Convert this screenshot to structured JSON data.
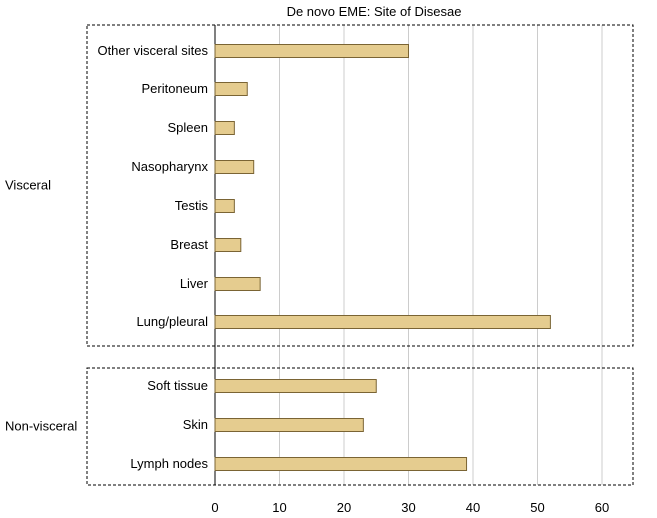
{
  "chart_data": {
    "type": "bar",
    "orientation": "horizontal",
    "title": "De novo EME: Site of Disesae",
    "xlabel": "",
    "ylabel": "",
    "xlim": [
      0,
      65
    ],
    "x_ticks": [
      0,
      10,
      20,
      30,
      40,
      50,
      60
    ],
    "grid": true,
    "bar_color": "#e5cc8f",
    "bar_edge_color": "#7a6434",
    "groups": [
      {
        "name": "Visceral",
        "categories": [
          "Other visceral sites",
          "Peritoneum",
          "Spleen",
          "Nasopharynx",
          "Testis",
          "Breast",
          "Liver",
          "Lung/pleural"
        ],
        "values": [
          30,
          5,
          3,
          6,
          3,
          4,
          7,
          52
        ]
      },
      {
        "name": "Non-visceral",
        "categories": [
          "Soft tissue",
          "Skin",
          "Lymph nodes"
        ],
        "values": [
          25,
          23,
          39
        ]
      }
    ]
  }
}
